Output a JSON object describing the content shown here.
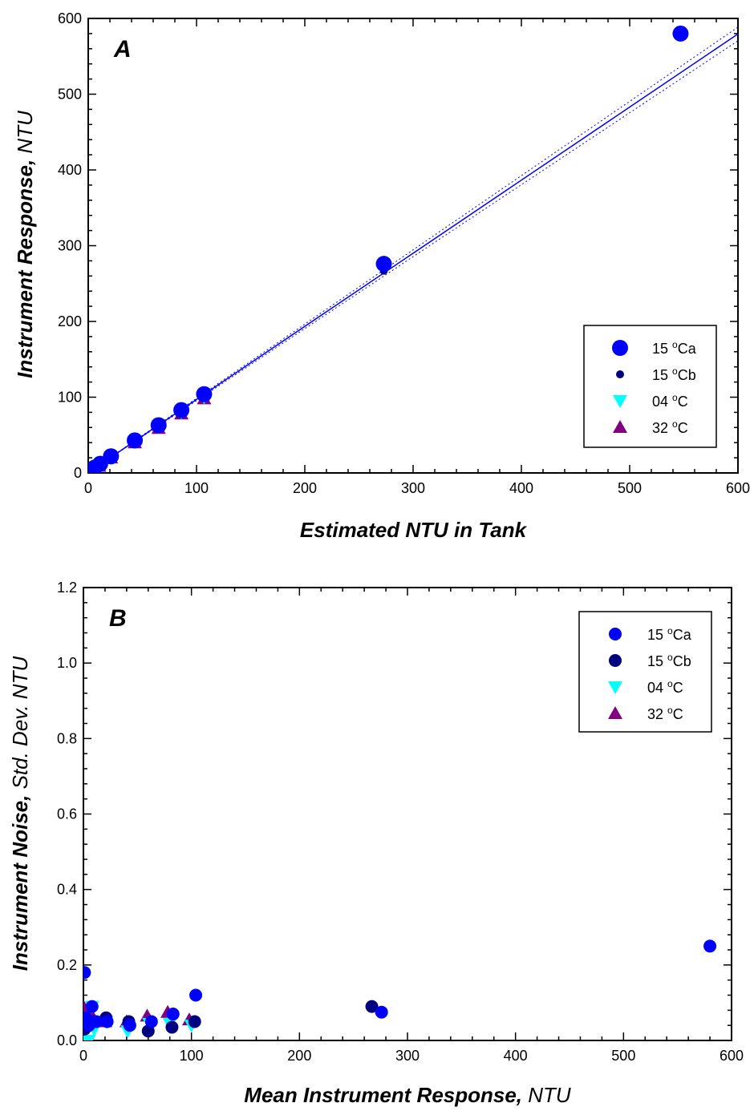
{
  "chart_data": [
    {
      "type": "scatter",
      "panel_label": "A",
      "xlabel": "Estimated NTU in Tank",
      "ylabel_main": "Instrument Response, ",
      "ylabel_unit": "NTU",
      "xlim": [
        0,
        600
      ],
      "ylim": [
        0,
        600
      ],
      "xticks": [
        0,
        100,
        200,
        300,
        400,
        500,
        600
      ],
      "yticks": [
        0,
        100,
        200,
        300,
        400,
        500,
        600
      ],
      "grid": false,
      "legend_position": "bottom-right",
      "series": [
        {
          "name": "15 °Ca",
          "name_main": "15 ",
          "name_sup": "o",
          "name_rest": "Ca",
          "marker": "circle-large",
          "color": "#0000ff",
          "points": [
            [
              0,
              1
            ],
            [
              1,
              2
            ],
            [
              3,
              4
            ],
            [
              6,
              7
            ],
            [
              11,
              12
            ],
            [
              21,
              22
            ],
            [
              43,
              43
            ],
            [
              65,
              63
            ],
            [
              86,
              83
            ],
            [
              107,
              104
            ],
            [
              273,
              276
            ],
            [
              547,
              580
            ]
          ]
        },
        {
          "name": "15 °Cb",
          "name_main": "15 ",
          "name_sup": "o",
          "name_rest": "Cb",
          "marker": "circle-small",
          "color": "#000080",
          "points": [
            [
              0,
              1
            ],
            [
              2,
              2
            ],
            [
              5,
              5
            ],
            [
              10,
              10
            ],
            [
              21,
              21
            ],
            [
              43,
              42
            ],
            [
              65,
              62
            ],
            [
              86,
              82
            ],
            [
              107,
              103
            ],
            [
              273,
              267
            ]
          ]
        },
        {
          "name": "04 °C",
          "name_main": "04 ",
          "name_sup": "o",
          "name_rest": "C",
          "marker": "triangle-down",
          "color": "#00ffff",
          "points": [
            [
              0,
              0
            ],
            [
              2,
              2
            ],
            [
              5,
              5
            ],
            [
              10,
              10
            ],
            [
              21,
              20
            ],
            [
              43,
              41
            ],
            [
              65,
              61
            ],
            [
              86,
              80
            ],
            [
              107,
              100
            ]
          ]
        },
        {
          "name": "32 °C",
          "name_main": "32 ",
          "name_sup": "o",
          "name_rest": "C",
          "marker": "triangle-up",
          "color": "#800080",
          "points": [
            [
              0,
              0
            ],
            [
              2,
              2
            ],
            [
              5,
              5
            ],
            [
              10,
              9
            ],
            [
              21,
              20
            ],
            [
              43,
              40
            ],
            [
              65,
              59
            ],
            [
              86,
              78
            ],
            [
              107,
              98
            ]
          ]
        }
      ],
      "regression_line": {
        "color": "#0000ff",
        "slope": 0.965,
        "intercept": 0.5,
        "band_halfwidth_at_max": 9
      }
    },
    {
      "type": "scatter",
      "panel_label": "B",
      "xlabel_main": "Mean Instrument Response, ",
      "xlabel_unit": "NTU",
      "ylabel_main": "Instrument Noise, ",
      "ylabel_unit": "Std. Dev. NTU",
      "xlim": [
        0,
        600
      ],
      "ylim": [
        0,
        1.2
      ],
      "xticks": [
        0,
        100,
        200,
        300,
        400,
        500,
        600
      ],
      "yticks": [
        "0.0",
        "0.2",
        "0.4",
        "0.6",
        "0.8",
        "1.0",
        "1.2"
      ],
      "grid": false,
      "legend_position": "top-right",
      "series": [
        {
          "name": "15 °Ca",
          "name_main": "15 ",
          "name_sup": "o",
          "name_rest": "Ca",
          "marker": "circle",
          "color": "#0000ff",
          "points": [
            [
              1,
              0.18
            ],
            [
              2,
              0.06
            ],
            [
              5,
              0.04
            ],
            [
              8,
              0.09
            ],
            [
              12,
              0.05
            ],
            [
              22,
              0.05
            ],
            [
              43,
              0.04
            ],
            [
              63,
              0.05
            ],
            [
              83,
              0.07
            ],
            [
              104,
              0.12
            ],
            [
              276,
              0.075
            ],
            [
              580,
              0.25
            ]
          ]
        },
        {
          "name": "15 °Cb",
          "name_main": "15 ",
          "name_sup": "o",
          "name_rest": "Cb",
          "marker": "circle",
          "color": "#000080",
          "points": [
            [
              1,
              0.03
            ],
            [
              2,
              0.05
            ],
            [
              5,
              0.04
            ],
            [
              10,
              0.05
            ],
            [
              21,
              0.06
            ],
            [
              42,
              0.05
            ],
            [
              60,
              0.025
            ],
            [
              82,
              0.035
            ],
            [
              103,
              0.05
            ],
            [
              267,
              0.09
            ]
          ]
        },
        {
          "name": "04 °C",
          "name_main": "04 ",
          "name_sup": "o",
          "name_rest": "C",
          "marker": "triangle-down",
          "color": "#00ffff",
          "points": [
            [
              0,
              0.0
            ],
            [
              2,
              0.0
            ],
            [
              5,
              0.0
            ],
            [
              8,
              0.09
            ],
            [
              10,
              0.03
            ],
            [
              21,
              0.05
            ],
            [
              41,
              0.025
            ],
            [
              61,
              0.045
            ],
            [
              80,
              0.045
            ],
            [
              100,
              0.04
            ]
          ]
        },
        {
          "name": "32 °C",
          "name_main": "32 ",
          "name_sup": "o",
          "name_rest": "C",
          "marker": "triangle-up",
          "color": "#800080",
          "points": [
            [
              0,
              0.09
            ],
            [
              2,
              0.05
            ],
            [
              5,
              0.07
            ],
            [
              9,
              0.06
            ],
            [
              20,
              0.05
            ],
            [
              40,
              0.05
            ],
            [
              59,
              0.065
            ],
            [
              78,
              0.075
            ],
            [
              98,
              0.055
            ]
          ]
        }
      ]
    }
  ]
}
